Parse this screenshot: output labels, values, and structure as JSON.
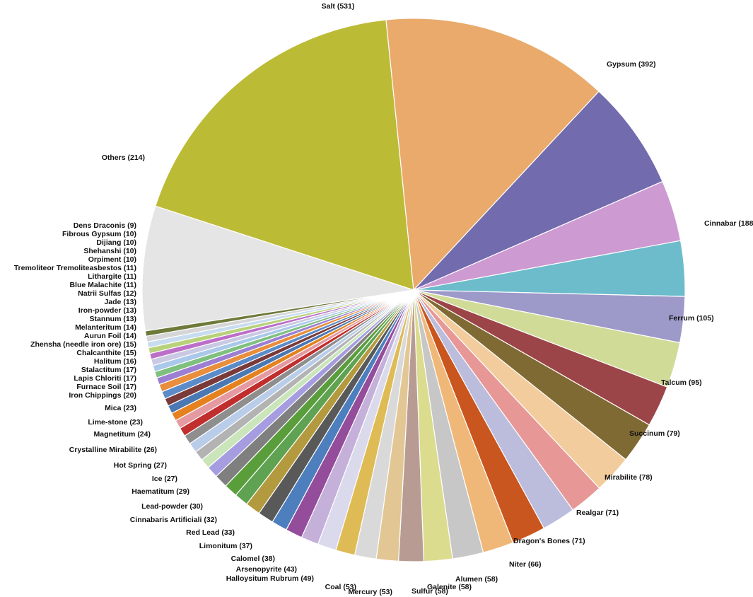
{
  "chart_data": {
    "type": "pie",
    "title": "",
    "slices": [
      {
        "label": "Salt (531)",
        "value": 531,
        "color": "#bcbb36"
      },
      {
        "label": "Gypsum (392)",
        "value": 392,
        "color": "#e9aa6c"
      },
      {
        "label": "Cinnabar (188)",
        "value": 188,
        "color": "#726bad"
      },
      {
        "label": "Ferrum (105)",
        "value": 105,
        "color": "#cd9ad2"
      },
      {
        "label": "Talcum (95)",
        "value": 95,
        "color": "#6cbccc"
      },
      {
        "label": "Succinum (79)",
        "value": 79,
        "color": "#9d99c8"
      },
      {
        "label": "Mirabilite (78)",
        "value": 78,
        "color": "#d1db98"
      },
      {
        "label": "Realgar (71)",
        "value": 71,
        "color": "#9c4548"
      },
      {
        "label": "Dragon's Bones (71)",
        "value": 71,
        "color": "#806a33"
      },
      {
        "label": "Niter (66)",
        "value": 66,
        "color": "#f2cc9c"
      },
      {
        "label": "Alumen (58)",
        "value": 58,
        "color": "#e89797"
      },
      {
        "label": "Galenite (58)",
        "value": 58,
        "color": "#bcbcdd"
      },
      {
        "label": "Sulfur (58)",
        "value": 58,
        "color": "#c9561e"
      },
      {
        "label": "Mercury (53)",
        "value": 53,
        "color": "#f0b878"
      },
      {
        "label": "Coal (53)",
        "value": 53,
        "color": "#c7c7c7"
      },
      {
        "label": "Halloysitum Rubrum (49)",
        "value": 49,
        "color": "#dbdc8e"
      },
      {
        "label": "Arsenopyrite (43)",
        "value": 43,
        "color": "#b89c93"
      },
      {
        "label": "Calomel (38)",
        "value": 38,
        "color": "#e2c795"
      },
      {
        "label": "Limonitum (37)",
        "value": 37,
        "color": "#d9d9d9"
      },
      {
        "label": "Red Lead (33)",
        "value": 33,
        "color": "#debb55"
      },
      {
        "label": "Cinnabaris Artificiali (32)",
        "value": 32,
        "color": "#dadaec"
      },
      {
        "label": "Lead-powder (30)",
        "value": 30,
        "color": "#c4b0d8"
      },
      {
        "label": "Haematitum (29)",
        "value": 29,
        "color": "#944d9a"
      },
      {
        "label": "Ice (27)",
        "value": 27,
        "color": "#4d7fbf"
      },
      {
        "label": "Hot Spring (27)",
        "value": 27,
        "color": "#595959"
      },
      {
        "label": "Crystalline Mirabilite (26)",
        "value": 26,
        "color": "#b49a3e"
      },
      {
        "label": "Magnetitum (24)",
        "value": 24,
        "color": "#5ea252"
      },
      {
        "label": "Lime-stone (23)",
        "value": 23,
        "color": "#5a9e3c"
      },
      {
        "label": "Mica (23)",
        "value": 23,
        "color": "#7f7f7f"
      },
      {
        "label": "Iron Chippings (20)",
        "value": 20,
        "color": "#a59ddf"
      },
      {
        "label": "Furnace Soil (17)",
        "value": 17,
        "color": "#c9e5b9"
      },
      {
        "label": "Lapis Chloriti (17)",
        "value": 17,
        "color": "#b3b3b3"
      },
      {
        "label": "Stalactitum (17)",
        "value": 17,
        "color": "#b9cde9"
      },
      {
        "label": "Halitum (16)",
        "value": 16,
        "color": "#8e8e8e"
      },
      {
        "label": "Chalcanthite (15)",
        "value": 15,
        "color": "#c02e2e"
      },
      {
        "label": "Zhensha (needle iron ore) (15)",
        "value": 15,
        "color": "#e49aa0"
      },
      {
        "label": "Aurun Foil (14)",
        "value": 14,
        "color": "#e5821f"
      },
      {
        "label": "Melanteritum (14)",
        "value": 14,
        "color": "#4a78b3"
      },
      {
        "label": "Stannum (13)",
        "value": 13,
        "color": "#7a3a3a"
      },
      {
        "label": "Iron-powder (13)",
        "value": 13,
        "color": "#5b8bc8"
      },
      {
        "label": "Jade (13)",
        "value": 13,
        "color": "#e88e3c"
      },
      {
        "label": "Natrii Sulfas (12)",
        "value": 12,
        "color": "#9c7fd2"
      },
      {
        "label": "Blue Malachite (11)",
        "value": 11,
        "color": "#7fc07f"
      },
      {
        "label": "Lithargite (11)",
        "value": 11,
        "color": "#a9c8ea"
      },
      {
        "label": "Tremoliteor Tremoliteasbestos (11)",
        "value": 11,
        "color": "#c9c9e3"
      },
      {
        "label": "Orpiment (10)",
        "value": 10,
        "color": "#bc6fc9"
      },
      {
        "label": "Shehanshi (10)",
        "value": 10,
        "color": "#b8d27a"
      },
      {
        "label": "Dijiang (10)",
        "value": 10,
        "color": "#c8dcf0"
      },
      {
        "label": "Fibrous Gypsum (10)",
        "value": 10,
        "color": "#d6d6d6"
      },
      {
        "label": "Dens Draconis (9)",
        "value": 9,
        "color": "#6e7a3a"
      },
      {
        "label": "Others (214)",
        "value": 214,
        "color": "#e5e5e5"
      }
    ]
  }
}
